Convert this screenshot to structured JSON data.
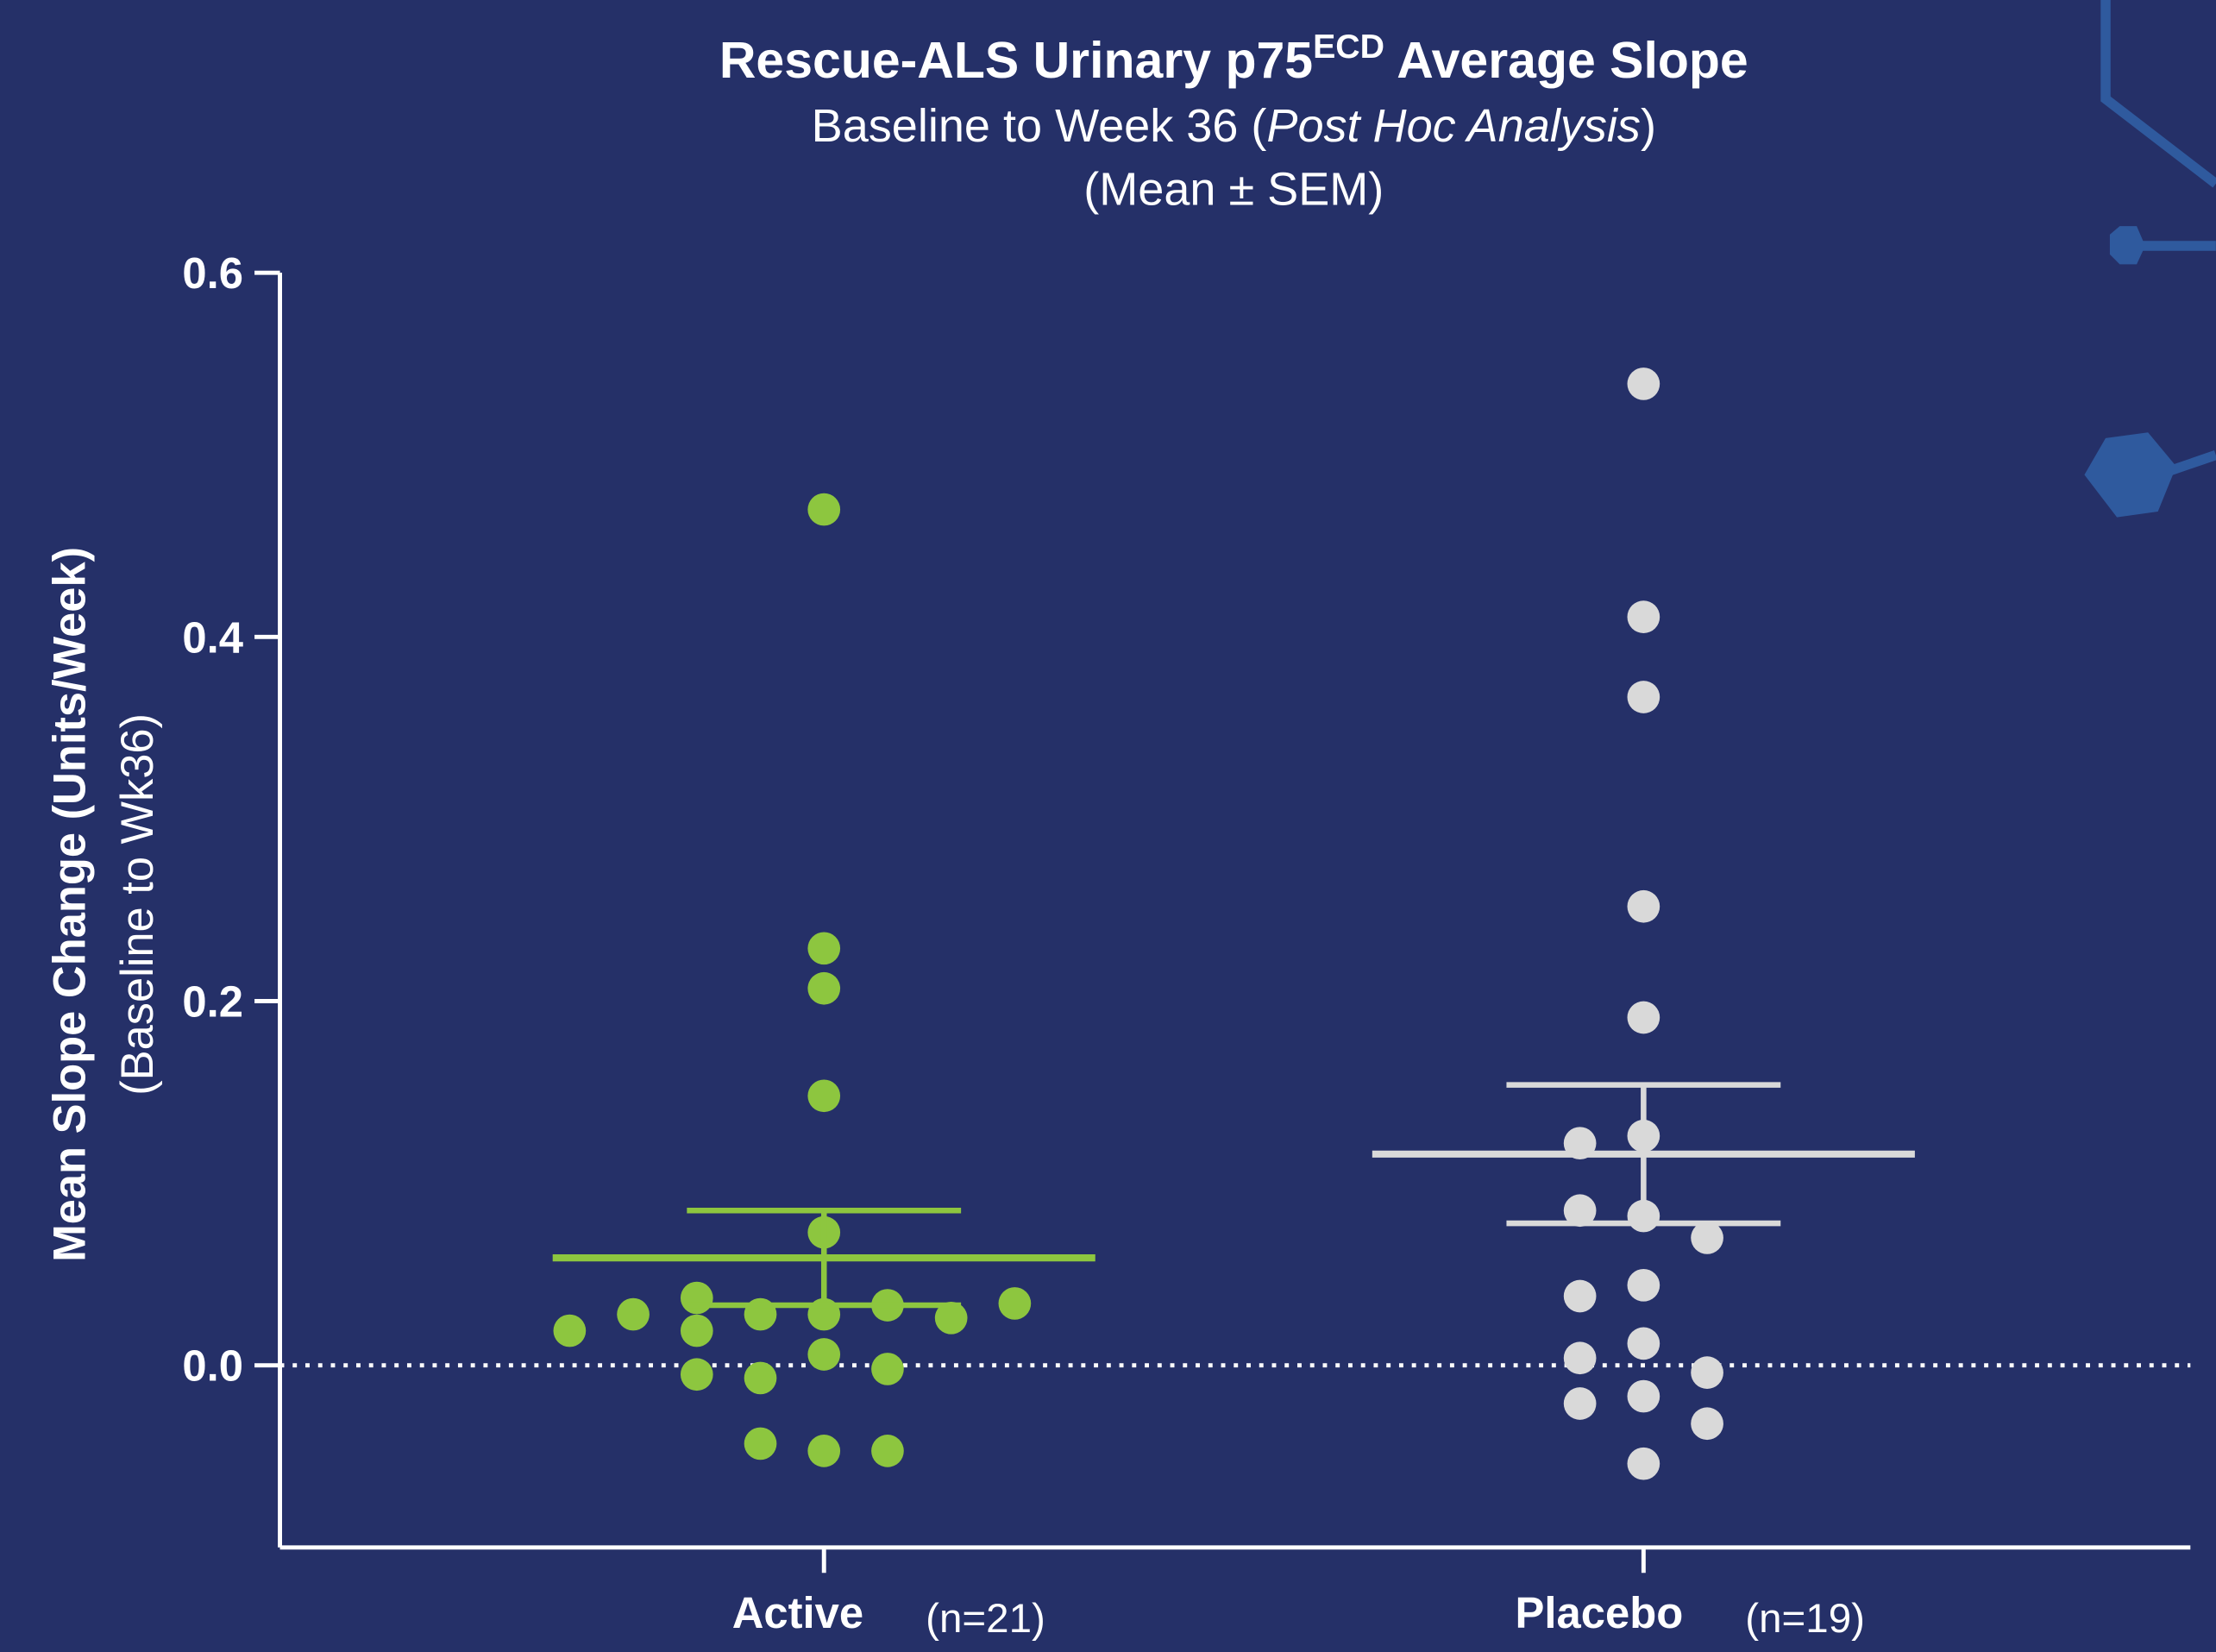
{
  "chart_data": {
    "type": "strip",
    "title": [
      "Rescue-ALS Urinary p75",
      "ECD",
      " Average Slope"
    ],
    "subtitle": [
      "Baseline to Week 36 (",
      "Post Hoc Analysis",
      ")"
    ],
    "note": "(Mean ± SEM)",
    "y_label": "Mean Slope Change (Units/Week)",
    "y_sublabel": "(Baseline to Wk36)",
    "ylim": [
      -0.1,
      0.6
    ],
    "yticks": [
      {
        "value": 0,
        "label": "0.0"
      },
      0.2,
      0.4,
      0.6
    ],
    "zero_line": true,
    "series": [
      {
        "name": "Active",
        "n_label": "(n=21)",
        "color": "#8dc63f",
        "values": [
          0.47,
          0.229,
          0.207,
          0.148,
          0.073,
          0.028,
          0.028,
          0.033,
          0.037,
          0.026,
          0.028,
          0.034,
          0.019,
          0.019,
          0.006,
          -0.007,
          -0.002,
          -0.005,
          -0.047,
          -0.043,
          -0.047
        ],
        "mean": 0.059,
        "sem": 0.026
      },
      {
        "name": "Placebo",
        "n_label": "(n=19)",
        "color": "#d9d9d9",
        "values": [
          0.539,
          0.411,
          0.367,
          0.252,
          0.191,
          0.126,
          0.122,
          0.082,
          0.085,
          0.07,
          0.044,
          0.038,
          0.012,
          0.004,
          -0.004,
          -0.017,
          -0.021,
          -0.032,
          -0.054
        ],
        "mean": 0.116,
        "sem": 0.038
      }
    ]
  }
}
